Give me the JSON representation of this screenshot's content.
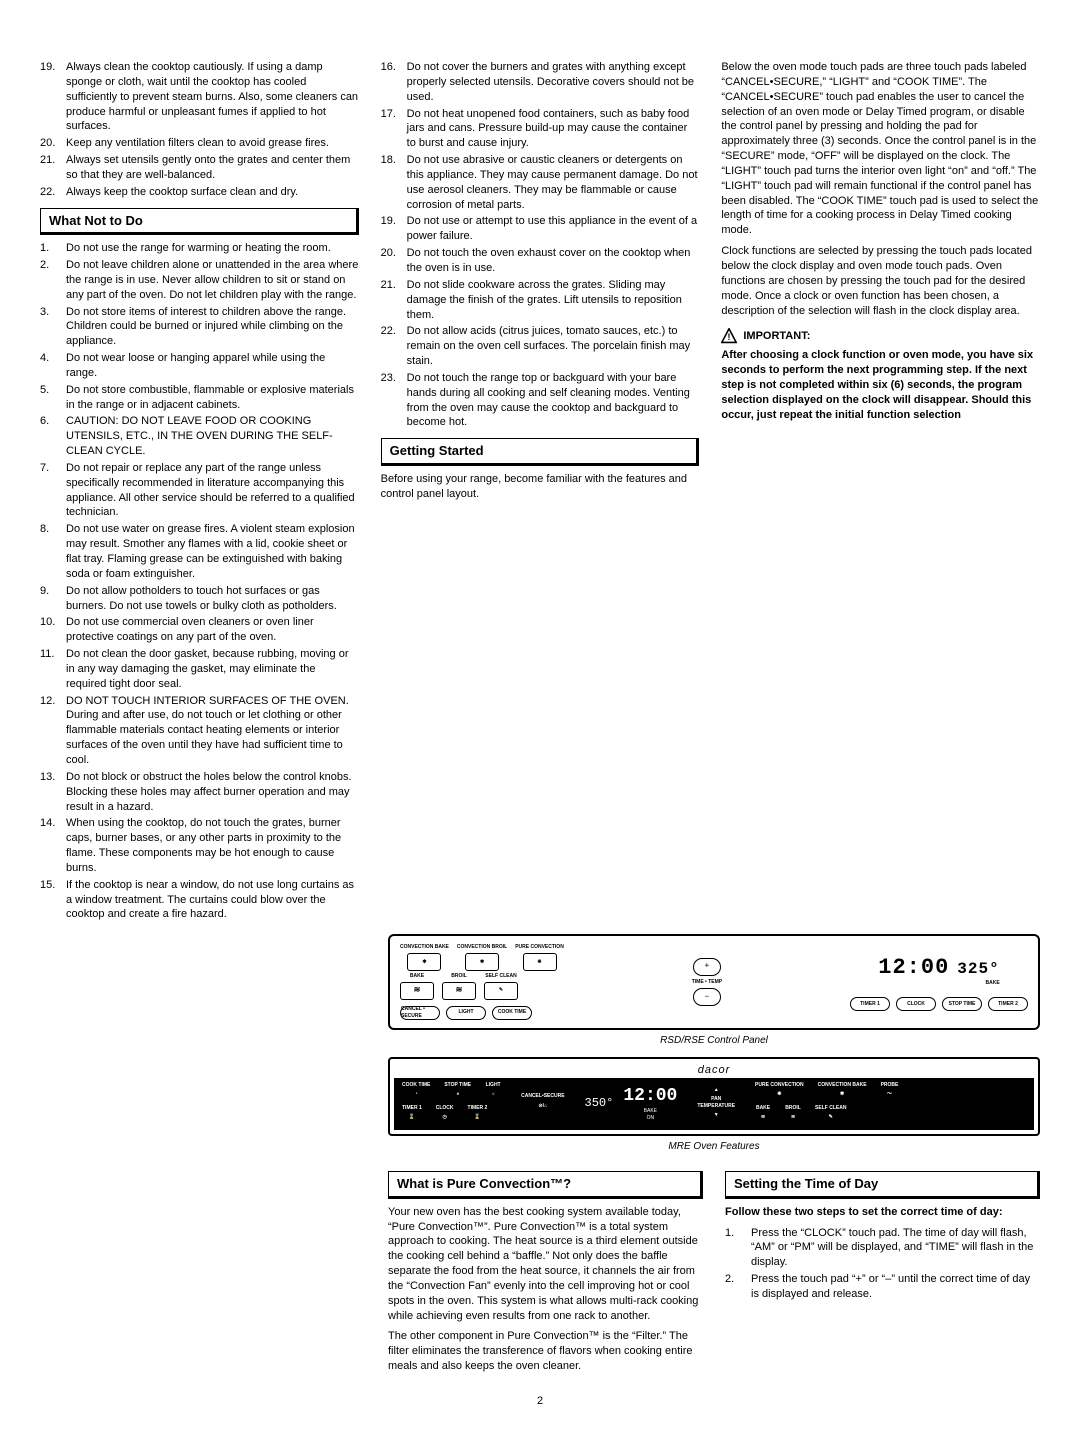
{
  "col1": {
    "list_a": [
      {
        "n": "19.",
        "t": "Always clean the cooktop cautiously. If using a damp sponge or cloth, wait until the cooktop has cooled sufficiently to prevent steam burns. Also, some cleaners can produce harmful or unpleasant fumes if applied to hot surfaces."
      },
      {
        "n": "20.",
        "t": "Keep any ventilation filters clean to avoid grease fires."
      },
      {
        "n": "21.",
        "t": "Always set utensils gently onto the grates and center them so that they are well-balanced."
      },
      {
        "n": "22.",
        "t": "Always keep the cooktop surface clean and dry."
      }
    ],
    "header1": "What Not to Do",
    "list_b": [
      {
        "n": "1.",
        "t": "Do not use the range for warming or heating the room."
      },
      {
        "n": "2.",
        "t": "Do not leave children alone or unattended in the area where the range is in use. Never allow children to sit or stand on any part of the oven. Do not let children play with the range."
      },
      {
        "n": "3.",
        "t": "Do not store items of interest to children above the range. Children could be burned or injured while climbing on the appliance."
      },
      {
        "n": "4.",
        "t": "Do not wear loose or hanging apparel while using the range."
      },
      {
        "n": "5.",
        "t": "Do not store combustible, flammable or explosive materials in the range or in adjacent cabinets."
      },
      {
        "n": "6.",
        "t": "CAUTION: DO NOT LEAVE FOOD OR COOKING UTENSILS, ETC., IN THE OVEN DURING THE SELF-CLEAN CYCLE."
      },
      {
        "n": "7.",
        "t": "Do not repair or replace any part of the range unless specifically recommended in literature accompanying this appliance. All other service should be referred to a qualified technician."
      },
      {
        "n": "8.",
        "t": "Do not use water on grease fires. A violent steam explosion may result. Smother any flames with a lid, cookie sheet or flat tray. Flaming grease can be extinguished with baking soda or foam extinguisher."
      },
      {
        "n": "9.",
        "t": "Do not allow potholders to touch hot surfaces or gas burners. Do not use towels or bulky cloth as potholders."
      },
      {
        "n": "10.",
        "t": "Do not use commercial oven cleaners or oven liner protective coatings on any part of the oven."
      },
      {
        "n": "11.",
        "t": "Do not clean the door gasket, because rubbing, moving or in any way damaging the gasket, may eliminate the required tight door seal."
      },
      {
        "n": "12.",
        "t": "DO NOT TOUCH INTERIOR SURFACES OF THE OVEN. During and after use, do not touch or let clothing or other flammable materials contact heating elements or interior surfaces of the oven until they have had sufficient time to cool."
      },
      {
        "n": "13.",
        "t": "Do not block or obstruct the holes below the control knobs. Blocking these holes may affect burner operation and may result in a hazard."
      },
      {
        "n": "14.",
        "t": "When using the cooktop, do not touch the grates, burner caps, burner bases, or any other parts in proximity to the flame. These components may be hot enough to cause burns."
      },
      {
        "n": "15.",
        "t": "If the cooktop is near a window, do not use long curtains as a window treatment. The curtains could blow over the cooktop and create a fire hazard."
      }
    ]
  },
  "col2": {
    "list_c": [
      {
        "n": "16.",
        "t": "Do not cover the burners and grates with anything except properly selected utensils. Decorative covers should not be used."
      },
      {
        "n": "17.",
        "t": "Do not heat unopened food containers, such as baby food jars and cans. Pressure build-up may cause the container to burst and cause injury."
      },
      {
        "n": "18.",
        "t": "Do not use abrasive or caustic cleaners or detergents on this appliance. They may cause permanent damage. Do not use aerosol cleaners. They may be flammable or cause corrosion of metal parts."
      },
      {
        "n": "19.",
        "t": "Do not use or attempt to use this appliance in the event of a power failure."
      },
      {
        "n": "20.",
        "t": "Do not touch the oven exhaust cover on the cooktop when the oven is in use."
      },
      {
        "n": "21.",
        "t": "Do not slide cookware across the grates. Sliding may damage the finish of the grates. Lift utensils to reposition them."
      },
      {
        "n": "22.",
        "t": "Do not allow acids (citrus juices, tomato sauces, etc.) to remain on the oven cell surfaces. The porcelain finish may stain."
      },
      {
        "n": "23.",
        "t": "Do not touch the range top or backguard with your bare hands during all cooking and self cleaning modes. Venting from the oven may cause the cooktop and backguard to become hot."
      }
    ],
    "header2": "Getting Started",
    "p_gs": "Before using your range, become familiar with the features and control panel layout."
  },
  "col3": {
    "p1": "Below the oven mode touch pads are three touch pads labeled “CANCEL•SECURE,” “LIGHT” and “COOK TIME”. The “CANCEL•SECURE” touch pad enables the user to cancel the selection of an oven mode or Delay Timed program, or disable the control panel by pressing and holding the pad for approximately three (3) seconds. Once the control panel is in the “SECURE” mode, “OFF” will be displayed on the clock. The “LIGHT” touch pad turns the interior oven light “on” and “off.” The “LIGHT” touch pad will remain functional if the control panel has been disabled. The “COOK TIME” touch pad is used to select the length of time for a cooking process in Delay Timed cooking mode.",
    "p2": "Clock functions are selected by pressing the touch pads located below the clock display and oven mode touch pads. Oven functions are chosen by pressing the touch pad for the desired mode. Once a clock or oven function has been chosen, a description of the selection will flash in the clock display area.",
    "imp_label": "IMPORTANT:",
    "imp_text": "After choosing a clock function or oven mode, you have six seconds to perform the next programming step. If the next step is not completed within six (6) seconds, the program selection displayed on the clock will disappear. Should this occur, just repeat the initial function selection"
  },
  "panel1": {
    "row1": [
      "CONVECTION BAKE",
      "CONVECTION BROIL",
      "PURE CONVECTION"
    ],
    "row2": [
      "BAKE",
      "BROIL",
      "SELF CLEAN"
    ],
    "timetemp": "TIME • TEMP",
    "ovals": [
      "CANCEL • SECURE",
      "LIGHT",
      "COOK TIME"
    ],
    "clock": "12:00",
    "temp": "325°",
    "bake_lbl": "BAKE",
    "ovals2": [
      "TIMER 1",
      "CLOCK",
      "STOP TIME",
      "TIMER 2"
    ],
    "caption": "RSD/RSE Control Panel"
  },
  "panel2": {
    "brand": "dacor",
    "left_top": [
      "COOK TIME",
      "STOP TIME",
      "LIGHT"
    ],
    "left_bot": [
      "TIMER 1",
      "CLOCK",
      "TIMER 2"
    ],
    "cancel": "CANCEL•SECURE",
    "temp": "350°",
    "clock": "12:00",
    "bakeon": "BAKE\nON",
    "right_top": [
      "PURE CONVECTION",
      "CONVECTION BAKE",
      "PROBE"
    ],
    "right_bot": [
      "BAKE",
      "BROIL",
      "SELF CLEAN"
    ],
    "pan_temp": "PAN\nTEMPERATURE",
    "caption": "MRE Oven Features"
  },
  "lower": {
    "header3": "What is Pure Convection™?",
    "p3a": "Your new oven has the best cooking system available today, “Pure Convection™”. Pure Convection™ is a total system approach to cooking. The heat source is a third element outside the cooking cell behind a “baffle.” Not only does the baffle separate the food from the heat source, it channels the air from the “Convection Fan” evenly into the cell improving hot or cool spots in the oven. This system is what allows multi-rack cooking while achieving even results from one rack to another.",
    "p3b": "The other component in Pure Convection™ is the “Filter.” The filter eliminates the transference of flavors when cooking entire meals and also keeps the oven cleaner.",
    "header4": "Setting the Time of Day",
    "p4a": "Follow these two steps to set the correct time of day:",
    "steps": [
      {
        "n": "1.",
        "t": "Press the “CLOCK” touch pad. The time of day will flash, “AM” or “PM” will be displayed, and “TIME” will flash in the display."
      },
      {
        "n": "2.",
        "t": "Press the touch pad “+” or “–” until the correct time of day is displayed and release."
      }
    ]
  },
  "page": "2"
}
